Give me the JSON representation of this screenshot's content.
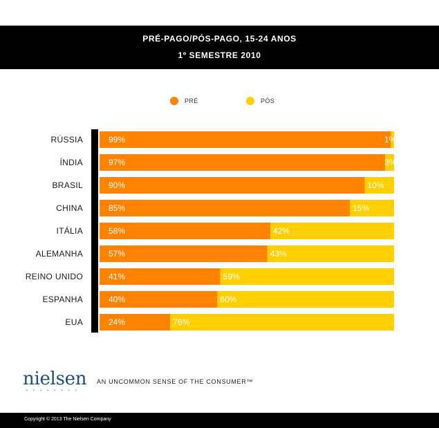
{
  "header": {
    "title": "PRÉ-PAGO/PÓS-PAGO, 15-24 ANOS",
    "subtitle": "1º SEMESTRE 2010"
  },
  "brand": {
    "logo": "nielsen",
    "tagline": "AN UNCOMMON SENSE OF THE CONSUMER™"
  },
  "footer": {
    "copyright": "Copyright © 2013 The Nielsen Company"
  },
  "colors": {
    "pre": "#ff8200",
    "pos": "#ffcf00",
    "axis": "#000000"
  },
  "chart_data": {
    "type": "bar",
    "orientation": "horizontal",
    "stacked": true,
    "title": "PRÉ-PAGO/PÓS-PAGO, 15-24 ANOS",
    "subtitle": "1º SEMESTRE 2010",
    "categories": [
      "RÚSSIA",
      "ÍNDIA",
      "BRASIL",
      "CHINA",
      "ITÁLIA",
      "ALEMANHA",
      "REINO UNIDO",
      "ESPANHA",
      "EUA"
    ],
    "series": [
      {
        "name": "PRÉ",
        "values": [
          99,
          97,
          90,
          85,
          58,
          57,
          41,
          40,
          24
        ],
        "labels": [
          "99%",
          "97%",
          "90%",
          "85%",
          "58%",
          "57%",
          "41%",
          "40%",
          "24%"
        ]
      },
      {
        "name": "PÓS",
        "values": [
          1,
          3,
          10,
          15,
          42,
          43,
          59,
          60,
          76
        ],
        "labels": [
          "1%",
          "3%",
          "10%",
          "15%",
          "42%",
          "43%",
          "59%",
          "60%",
          "76%"
        ]
      }
    ],
    "xlim": [
      0,
      100
    ],
    "legend": "top-center",
    "grid": false
  }
}
